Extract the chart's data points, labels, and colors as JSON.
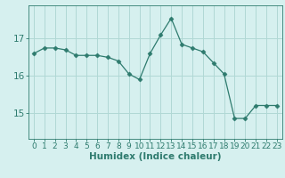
{
  "x": [
    0,
    1,
    2,
    3,
    4,
    5,
    6,
    7,
    8,
    9,
    10,
    11,
    12,
    13,
    14,
    15,
    16,
    17,
    18,
    19,
    20,
    21,
    22,
    23
  ],
  "y": [
    16.6,
    16.75,
    16.75,
    16.7,
    16.55,
    16.55,
    16.55,
    16.5,
    16.4,
    16.05,
    15.9,
    16.6,
    17.1,
    17.55,
    16.85,
    16.75,
    16.65,
    16.35,
    16.05,
    14.85,
    14.85,
    15.2,
    15.2,
    15.2
  ],
  "line_color": "#2e7b6e",
  "marker": "D",
  "marker_size": 2.5,
  "bg_color": "#d6f0ef",
  "grid_color": "#b0d8d5",
  "axis_color": "#2e7b6e",
  "xlabel": "Humidex (Indice chaleur)",
  "xlabel_fontsize": 7.5,
  "yticks": [
    15,
    16,
    17
  ],
  "ylim": [
    14.3,
    17.9
  ],
  "xlim": [
    -0.5,
    23.5
  ],
  "tick_fontsize": 6.5
}
